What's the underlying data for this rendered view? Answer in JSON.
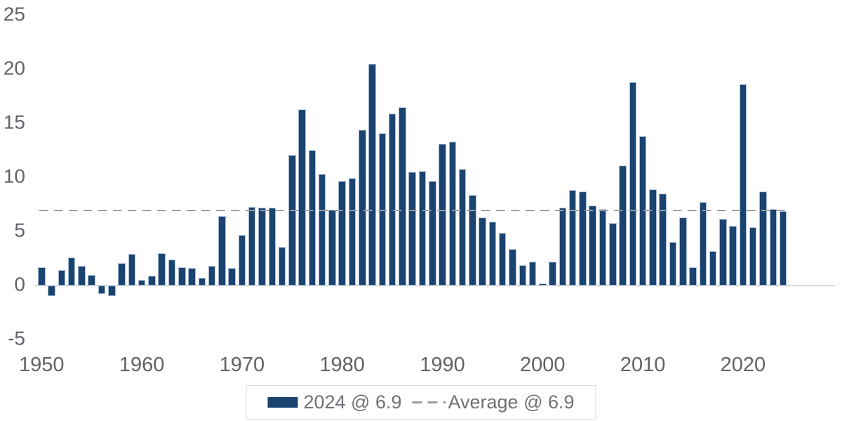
{
  "chart_data": {
    "type": "bar",
    "title": "",
    "xlabel": "",
    "ylabel": "",
    "start_year": 1950,
    "end_year": 2024,
    "categories": [
      1950,
      1951,
      1952,
      1953,
      1954,
      1955,
      1956,
      1957,
      1958,
      1959,
      1960,
      1961,
      1962,
      1963,
      1964,
      1965,
      1966,
      1967,
      1968,
      1969,
      1970,
      1971,
      1972,
      1973,
      1974,
      1975,
      1976,
      1977,
      1978,
      1979,
      1980,
      1981,
      1982,
      1983,
      1984,
      1985,
      1986,
      1987,
      1988,
      1989,
      1990,
      1991,
      1992,
      1993,
      1994,
      1995,
      1996,
      1997,
      1998,
      1999,
      2000,
      2001,
      2002,
      2003,
      2004,
      2005,
      2006,
      2007,
      2008,
      2009,
      2010,
      2011,
      2012,
      2013,
      2014,
      2015,
      2016,
      2017,
      2018,
      2019,
      2020,
      2021,
      2022,
      2023,
      2024
    ],
    "series": [
      {
        "name": "2024 @ 6.9",
        "values": [
          1.7,
          -1.0,
          1.4,
          2.6,
          1.8,
          1.0,
          -0.8,
          -1.0,
          2.1,
          2.9,
          0.5,
          0.9,
          3.0,
          2.4,
          1.7,
          1.6,
          0.7,
          1.8,
          6.4,
          1.6,
          4.7,
          7.3,
          7.2,
          7.2,
          3.6,
          12.1,
          16.3,
          12.5,
          10.3,
          7.0,
          9.7,
          9.9,
          14.4,
          20.5,
          14.1,
          15.9,
          16.5,
          10.5,
          10.6,
          9.7,
          13.1,
          13.3,
          10.8,
          8.4,
          6.3,
          5.9,
          4.9,
          3.4,
          1.9,
          2.2,
          0.2,
          2.2,
          7.2,
          8.8,
          8.7,
          7.4,
          7.1,
          5.8,
          11.1,
          18.8,
          13.8,
          8.9,
          8.5,
          4.0,
          6.3,
          1.7,
          7.7,
          3.2,
          6.2,
          5.5,
          18.6,
          5.4,
          8.7,
          7.1,
          6.9
        ]
      }
    ],
    "average_line": {
      "value": 6.9,
      "label": "Average @ 6.9",
      "style": "dashed"
    },
    "ylim": [
      -5,
      25
    ],
    "yticks": [
      25,
      20,
      15,
      10,
      5,
      0,
      -5
    ],
    "xticks": [
      1950,
      1960,
      1970,
      1980,
      1990,
      2000,
      2010,
      2020
    ],
    "grid": "off",
    "legend_position": "bottom-center",
    "latest_value": 6.9,
    "average_value": 6.9
  },
  "legend": {
    "series_label": "2024 @ 6.9",
    "average_label": "Average @ 6.9"
  },
  "colors": {
    "bar_fill": "#1b4370",
    "bar_edge": "#a7bcd6",
    "average_line": "#9b9da0",
    "axis_line": "#d9d9d9",
    "axis_text": "#5f6368",
    "legend_text": "#6e7276",
    "legend_border": "#dcdcdc",
    "background": "#ffffff"
  }
}
